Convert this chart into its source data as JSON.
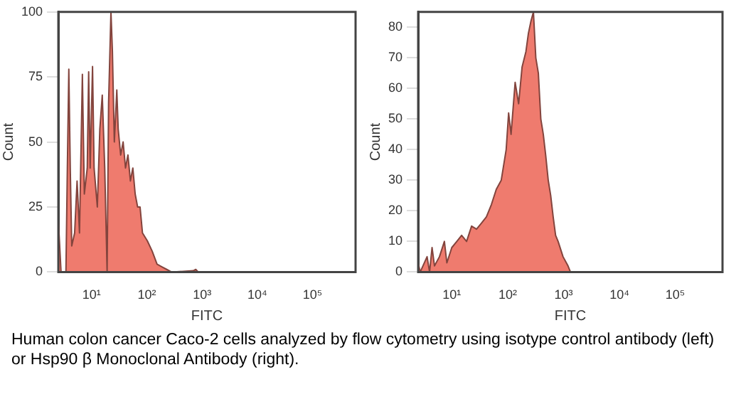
{
  "chart_data": [
    {
      "type": "area",
      "xlabel": "FITC",
      "ylabel": "Count",
      "log": "x",
      "grid": false,
      "legend": false,
      "marker": "none",
      "xlim": [
        2.5,
        600000
      ],
      "ylim": [
        0,
        100
      ],
      "xticks": [
        {
          "value": 10,
          "label": "10¹"
        },
        {
          "value": 100,
          "label": "10²"
        },
        {
          "value": 1000,
          "label": "10³"
        },
        {
          "value": 10000,
          "label": "10⁴"
        },
        {
          "value": 100000,
          "label": "10⁵"
        }
      ],
      "yticks": [
        0,
        25,
        50,
        75,
        100
      ],
      "x": [
        2.5,
        2.58,
        2.8,
        3.43,
        3.64,
        3.87,
        4.11,
        4.37,
        4.93,
        5.46,
        6.04,
        6.81,
        7.39,
        8.34,
        8.85,
        9.42,
        10.4,
        11.1,
        12.7,
        14.1,
        15.6,
        17.3,
        19.1,
        20.3,
        22.4,
        23.8,
        25.8,
        28.6,
        30.3,
        33.6,
        37.2,
        41.1,
        45.5,
        50.4,
        55.8,
        61.5,
        68.1,
        75.4,
        83.4,
        102,
        125,
        153,
        187,
        229,
        280,
        695,
        769,
        851,
        590000
      ],
      "series": [
        {
          "color": "#ef7b6e",
          "values": [
            20,
            20,
            0,
            0,
            40,
            78,
            40,
            10,
            15,
            35,
            15,
            76,
            30,
            40,
            77,
            40,
            79,
            40,
            25,
            55,
            68,
            40,
            0,
            65,
            100,
            85,
            50,
            70,
            55,
            45,
            50,
            40,
            45,
            35,
            40,
            30,
            25,
            25,
            15,
            12,
            8,
            3,
            2,
            1,
            0,
            0.5,
            1,
            0,
            0
          ]
        }
      ],
      "annotations": [
        "Human colon cancer Caco-2 cells analyzed by flow cytometry using isotype control antibody (left) or Hsp90 β Monoclonal Antibody (right)."
      ]
    },
    {
      "type": "area",
      "xlabel": "FITC",
      "ylabel": "Count",
      "log": "x",
      "grid": false,
      "legend": false,
      "marker": "none",
      "xlim": [
        2.5,
        700000
      ],
      "ylim": [
        0,
        85
      ],
      "xticks": [
        {
          "value": 10,
          "label": "10¹"
        },
        {
          "value": 100,
          "label": "10²"
        },
        {
          "value": 1000,
          "label": "10³"
        },
        {
          "value": 10000,
          "label": "10⁴"
        },
        {
          "value": 100000,
          "label": "10⁵"
        }
      ],
      "yticks": [
        0,
        10,
        20,
        30,
        40,
        50,
        60,
        70,
        80
      ],
      "x": [
        2.5,
        2.72,
        3.61,
        4.0,
        4.43,
        4.9,
        6.01,
        7.37,
        8.16,
        10,
        12.3,
        15,
        18.4,
        22.6,
        27.7,
        34,
        41.6,
        51,
        62.5,
        76.7,
        94,
        104,
        115,
        136,
        157,
        181,
        212,
        235,
        261,
        289,
        319,
        354,
        392,
        434,
        480,
        532,
        589,
        652,
        721,
        799,
        979,
        1202,
        1330,
        690000
      ],
      "series": [
        {
          "color": "#ef7b6e",
          "values": [
            3,
            0,
            5,
            0,
            8,
            2,
            5,
            10,
            3,
            8,
            10,
            12,
            10,
            15,
            14,
            16,
            18,
            22,
            27,
            30,
            40,
            52,
            45,
            62,
            55,
            67,
            72,
            78,
            82,
            85,
            70,
            65,
            50,
            45,
            38,
            30,
            25,
            18,
            12,
            10,
            5,
            2,
            0,
            0
          ]
        }
      ]
    }
  ]
}
